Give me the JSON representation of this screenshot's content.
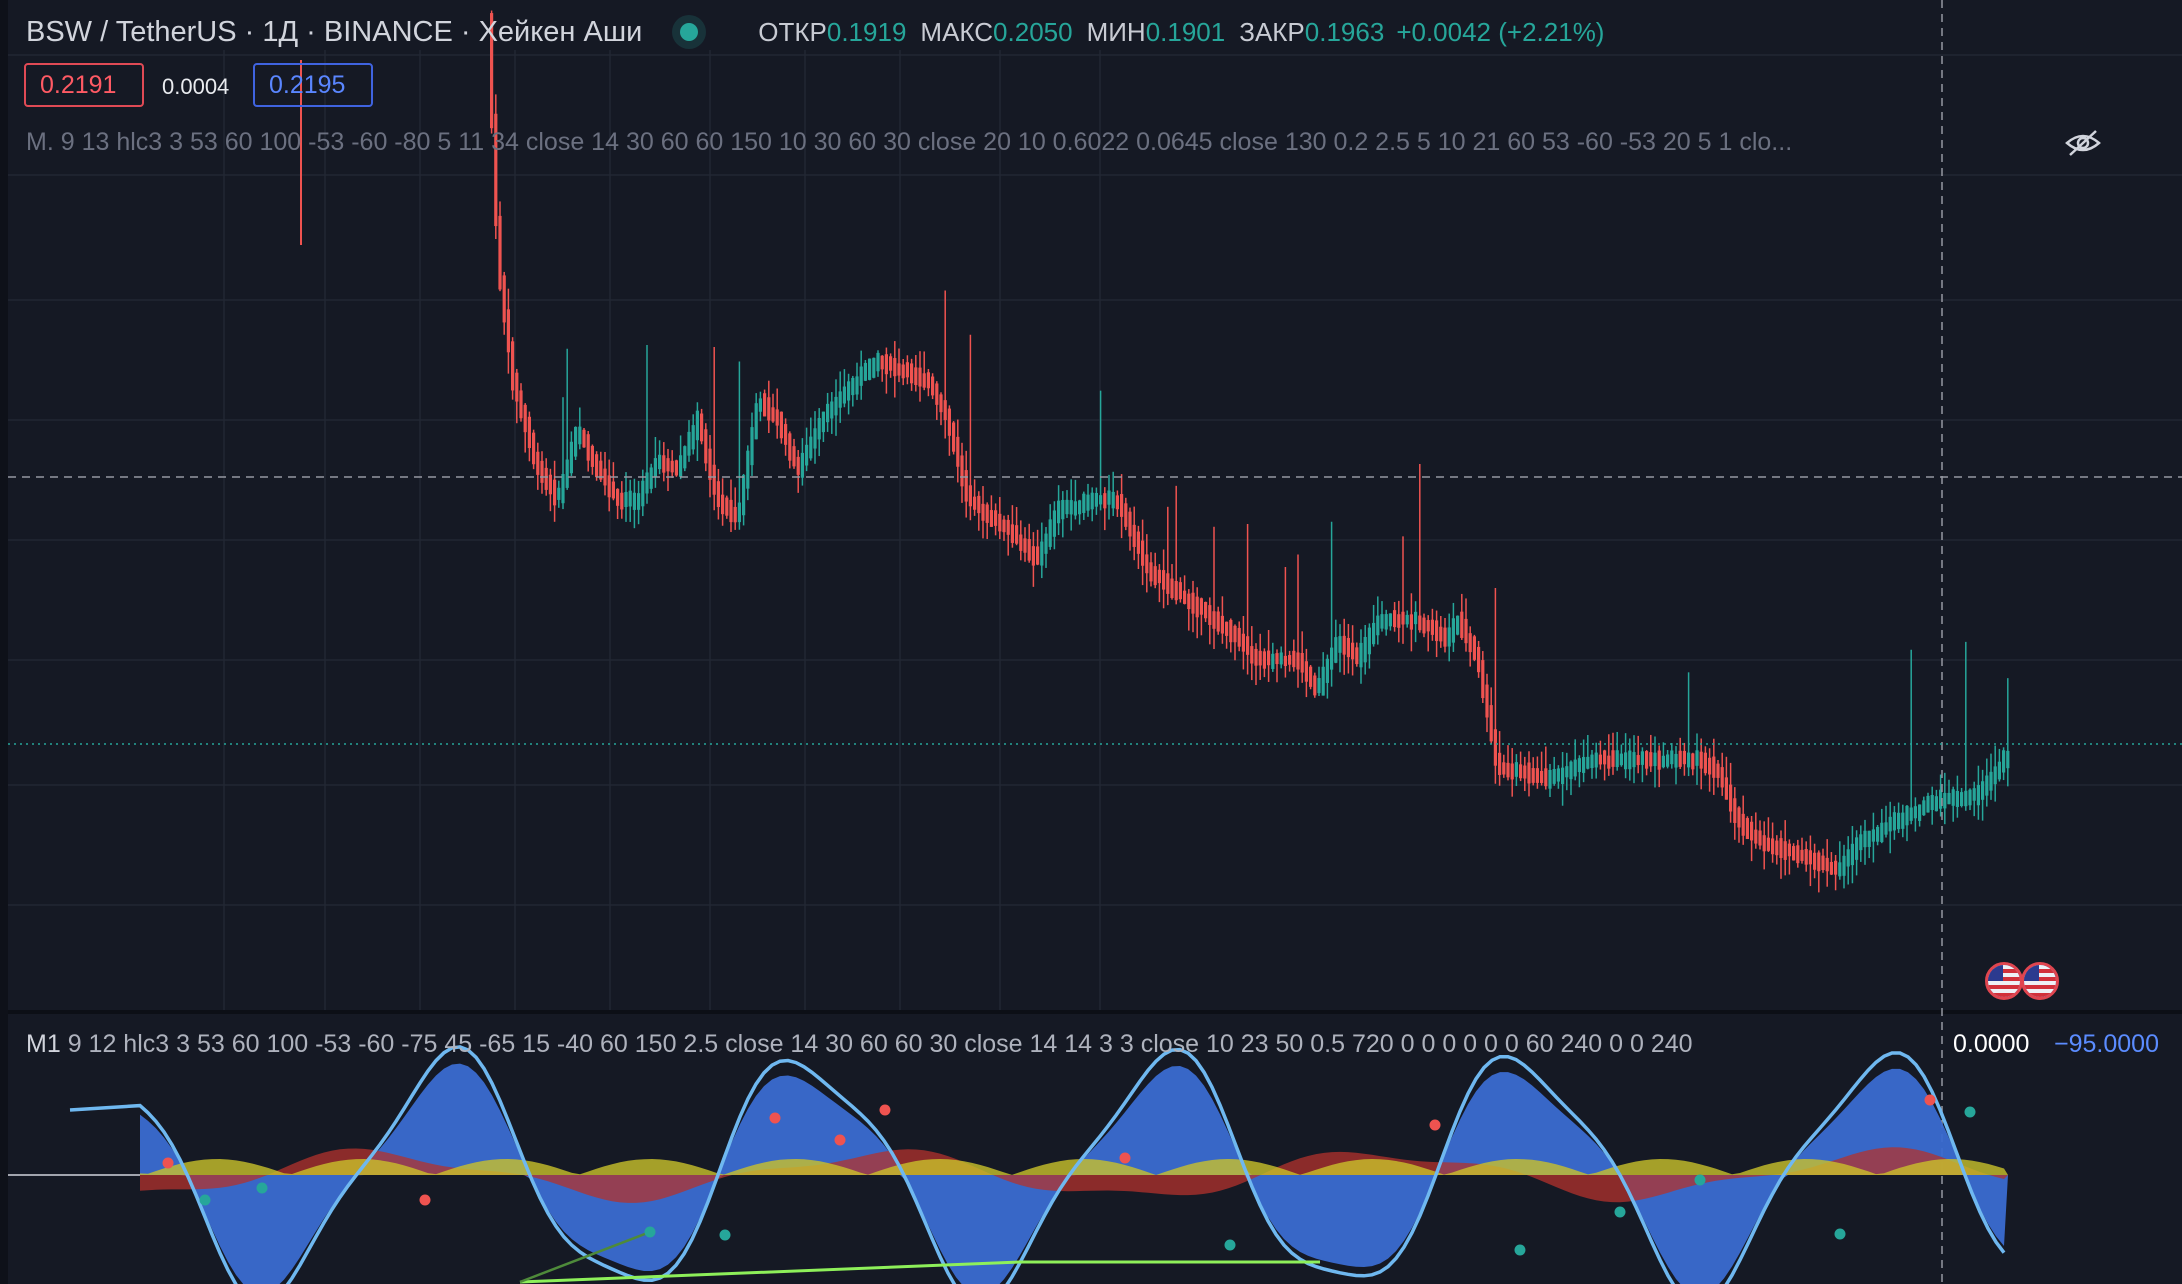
{
  "header": {
    "title": "BSW / TetherUS · 1Д · BINANCE · Хейкен Аши",
    "ohlc": [
      {
        "label": "ОТКР",
        "value": "0.1919"
      },
      {
        "label": "МАКС",
        "value": "0.2050"
      },
      {
        "label": "МИН",
        "value": "0.1901"
      },
      {
        "label": "ЗАКР",
        "value": "0.1963"
      }
    ],
    "change": "+0.0042 (+2.21%)"
  },
  "trade": {
    "sell_price": "0.2191",
    "spread": "0.0004",
    "buy_price": "0.2195"
  },
  "main_indicator": {
    "legend": "M. 9 13 hlc3 3 53 60 100 -53 -60 -80 5 11 34 close 14 30 60 60 150 10 30 60 30 close 20 10 0.6022 0.0645 close 130 0.2 2.5 5 10 21 60 53 -60 -53 20 5 1 clo..."
  },
  "sub_indicator": {
    "name": "M1",
    "legend": "9 12 hlc3 3 53 60 100 -53 -60 -75 45 -65 15 -40 60 150 2.5 close 14 30 60 60 30 close 14 14 3 3 close 10 23 50 0.5 720 0 0 0 0 0 0 60 240 0 0 240",
    "value1": "0.0000",
    "value2": "−95.0000"
  },
  "icons": [
    "eye-off-icon",
    "us-flag-icon",
    "live-status-icon"
  ],
  "colors": {
    "background": "#151924",
    "up": "#26a69a",
    "down": "#ef5350",
    "oscillator_blue": "#3a6bd1",
    "oscillator_line": "#6fb8f0",
    "oscillator_yellow": "#c9c22b",
    "oscillator_red": "#b3322c",
    "divergence_line": "#8ef05a"
  }
}
